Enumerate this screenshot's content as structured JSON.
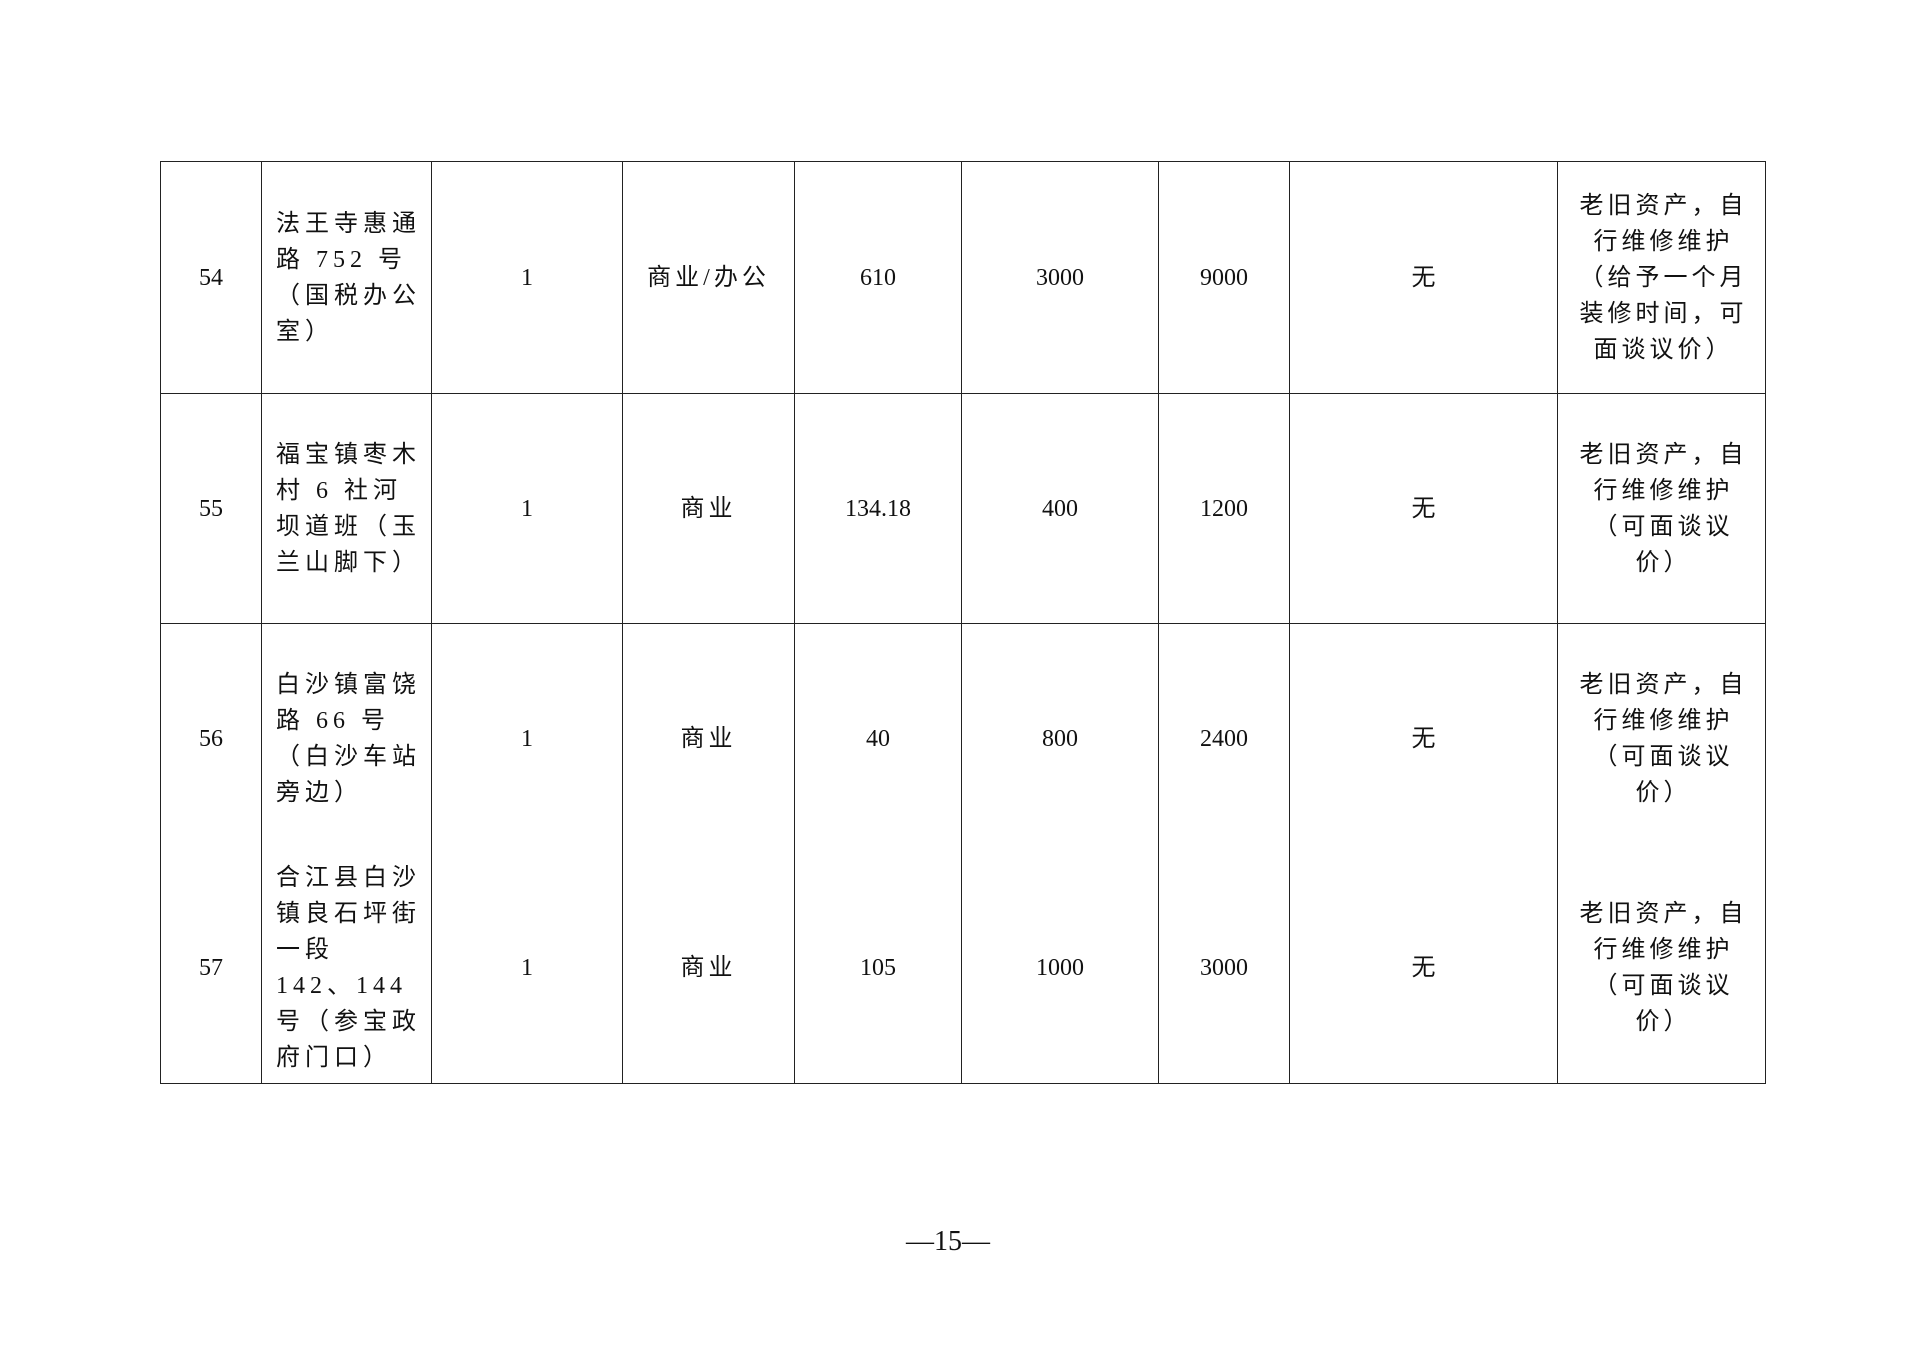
{
  "rows": [
    {
      "no": "54",
      "address": "法王寺惠通路 752 号（国税办公室）",
      "qty": "1",
      "use": "商业/办公",
      "area": "610",
      "price": "3000",
      "deposit": "9000",
      "other": "无",
      "note": "老旧资产，自行维修维护（给予一个月装修时间，可面谈议价）"
    },
    {
      "no": "55",
      "address": "福宝镇枣木村 6 社河坝道班（玉兰山脚下）",
      "qty": "1",
      "use": "商业",
      "area": "134.18",
      "price": "400",
      "deposit": "1200",
      "other": "无",
      "note": "老旧资产，自行维修维护（可面谈议价）"
    },
    {
      "no": "56",
      "address": "白沙镇富饶路 66 号（白沙车站旁边）",
      "qty": "1",
      "use": "商业",
      "area": "40",
      "price": "800",
      "deposit": "2400",
      "other": "无",
      "note": "老旧资产，自行维修维护（可面谈议价）"
    },
    {
      "no": "57",
      "address": "合江县白沙镇良石坪街一段 142、144 号（参宝政府门口）",
      "qty": "1",
      "use": "商业",
      "area": "105",
      "price": "1000",
      "deposit": "3000",
      "other": "无",
      "note": "老旧资产，自行维修维护（可面谈议价）"
    }
  ],
  "page_number": "—15—"
}
